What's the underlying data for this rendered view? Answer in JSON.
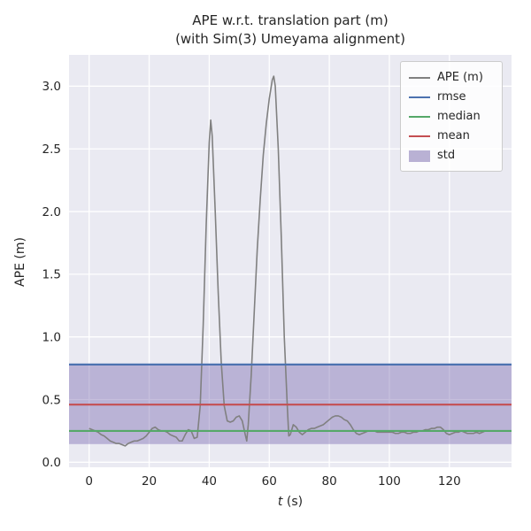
{
  "title": {
    "line1": "APE w.r.t. translation part (m)",
    "line2": "(with Sim(3) Umeyama alignment)"
  },
  "axes": {
    "ylabel": "APE (m)",
    "xlabel_var": "t",
    "xlabel_unit": " (s)"
  },
  "legend": {
    "items": [
      {
        "label": "APE (m)",
        "type": "line",
        "color": "#808080"
      },
      {
        "label": "rmse",
        "type": "line",
        "color": "#4C72B0"
      },
      {
        "label": "median",
        "type": "line",
        "color": "#55A868"
      },
      {
        "label": "mean",
        "type": "line",
        "color": "#C44E52"
      },
      {
        "label": "std",
        "type": "patch",
        "color": "rgba(129,114,179,0.55)"
      }
    ]
  },
  "chart_data": {
    "type": "line",
    "title": "APE w.r.t. translation part (m) (with Sim(3) Umeyama alignment)",
    "xlabel": "t (s)",
    "ylabel": "APE (m)",
    "xlim": [
      -6.7,
      140.7
    ],
    "ylim": [
      -0.04,
      3.25
    ],
    "xticks": [
      0,
      20,
      40,
      60,
      80,
      100,
      120
    ],
    "yticks": [
      0.0,
      0.5,
      1.0,
      1.5,
      2.0,
      2.5,
      3.0
    ],
    "grid": true,
    "legend_position": "upper right",
    "stats": {
      "rmse": 0.78,
      "mean": 0.46,
      "median": 0.25,
      "std": 0.315,
      "std_band": [
        0.145,
        0.775
      ]
    },
    "colors": {
      "plot_bg": "#EAEAF2",
      "grid": "#FFFFFF",
      "ape": "#808080",
      "rmse": "#4C72B0",
      "median": "#55A868",
      "mean": "#C44E52",
      "std_fill": "rgba(129,114,179,0.45)",
      "text": "#262626"
    },
    "series": [
      {
        "name": "APE (m)",
        "color": "#808080",
        "points": [
          [
            0,
            0.27
          ],
          [
            1,
            0.26
          ],
          [
            2,
            0.25
          ],
          [
            3,
            0.24
          ],
          [
            4,
            0.22
          ],
          [
            5,
            0.21
          ],
          [
            6,
            0.19
          ],
          [
            7,
            0.17
          ],
          [
            8,
            0.16
          ],
          [
            9,
            0.15
          ],
          [
            10,
            0.15
          ],
          [
            11,
            0.14
          ],
          [
            12,
            0.13
          ],
          [
            13,
            0.15
          ],
          [
            14,
            0.16
          ],
          [
            15,
            0.17
          ],
          [
            16,
            0.17
          ],
          [
            17,
            0.18
          ],
          [
            18,
            0.19
          ],
          [
            19,
            0.21
          ],
          [
            20,
            0.24
          ],
          [
            21,
            0.27
          ],
          [
            22,
            0.28
          ],
          [
            23,
            0.26
          ],
          [
            24,
            0.25
          ],
          [
            25,
            0.25
          ],
          [
            26,
            0.24
          ],
          [
            27,
            0.22
          ],
          [
            28,
            0.21
          ],
          [
            29,
            0.2
          ],
          [
            30,
            0.17
          ],
          [
            31,
            0.17
          ],
          [
            32,
            0.22
          ],
          [
            33,
            0.26
          ],
          [
            34,
            0.25
          ],
          [
            35,
            0.19
          ],
          [
            36,
            0.2
          ],
          [
            37,
            0.45
          ],
          [
            38,
            1.1
          ],
          [
            39,
            1.9
          ],
          [
            40,
            2.55
          ],
          [
            40.5,
            2.73
          ],
          [
            41,
            2.6
          ],
          [
            42,
            2.0
          ],
          [
            43,
            1.35
          ],
          [
            44,
            0.8
          ],
          [
            45,
            0.45
          ],
          [
            46,
            0.33
          ],
          [
            47,
            0.32
          ],
          [
            48,
            0.33
          ],
          [
            49,
            0.36
          ],
          [
            50,
            0.37
          ],
          [
            51,
            0.33
          ],
          [
            52,
            0.22
          ],
          [
            52.5,
            0.17
          ],
          [
            53,
            0.3
          ],
          [
            54,
            0.7
          ],
          [
            55,
            1.2
          ],
          [
            56,
            1.7
          ],
          [
            57,
            2.1
          ],
          [
            58,
            2.45
          ],
          [
            59,
            2.7
          ],
          [
            60,
            2.9
          ],
          [
            61,
            3.05
          ],
          [
            61.5,
            3.08
          ],
          [
            62,
            3.0
          ],
          [
            63,
            2.5
          ],
          [
            64,
            1.8
          ],
          [
            65,
            1.0
          ],
          [
            66,
            0.45
          ],
          [
            66.5,
            0.21
          ],
          [
            67,
            0.22
          ],
          [
            68,
            0.3
          ],
          [
            69,
            0.28
          ],
          [
            70,
            0.24
          ],
          [
            71,
            0.22
          ],
          [
            72,
            0.24
          ],
          [
            73,
            0.26
          ],
          [
            74,
            0.27
          ],
          [
            75,
            0.27
          ],
          [
            76,
            0.28
          ],
          [
            77,
            0.29
          ],
          [
            78,
            0.3
          ],
          [
            79,
            0.32
          ],
          [
            80,
            0.34
          ],
          [
            81,
            0.36
          ],
          [
            82,
            0.37
          ],
          [
            83,
            0.37
          ],
          [
            84,
            0.36
          ],
          [
            85,
            0.34
          ],
          [
            86,
            0.33
          ],
          [
            87,
            0.3
          ],
          [
            88,
            0.26
          ],
          [
            89,
            0.23
          ],
          [
            90,
            0.22
          ],
          [
            91,
            0.23
          ],
          [
            92,
            0.24
          ],
          [
            93,
            0.25
          ],
          [
            94,
            0.25
          ],
          [
            95,
            0.25
          ],
          [
            96,
            0.24
          ],
          [
            97,
            0.24
          ],
          [
            98,
            0.24
          ],
          [
            99,
            0.24
          ],
          [
            100,
            0.24
          ],
          [
            101,
            0.24
          ],
          [
            102,
            0.23
          ],
          [
            103,
            0.23
          ],
          [
            104,
            0.24
          ],
          [
            105,
            0.24
          ],
          [
            106,
            0.23
          ],
          [
            107,
            0.23
          ],
          [
            108,
            0.24
          ],
          [
            109,
            0.24
          ],
          [
            110,
            0.25
          ],
          [
            111,
            0.25
          ],
          [
            112,
            0.26
          ],
          [
            113,
            0.26
          ],
          [
            114,
            0.27
          ],
          [
            115,
            0.27
          ],
          [
            116,
            0.28
          ],
          [
            117,
            0.28
          ],
          [
            118,
            0.26
          ],
          [
            119,
            0.23
          ],
          [
            120,
            0.22
          ],
          [
            121,
            0.23
          ],
          [
            122,
            0.24
          ],
          [
            123,
            0.24
          ],
          [
            124,
            0.25
          ],
          [
            125,
            0.24
          ],
          [
            126,
            0.23
          ],
          [
            127,
            0.23
          ],
          [
            128,
            0.23
          ],
          [
            129,
            0.24
          ],
          [
            130,
            0.23
          ],
          [
            131,
            0.24
          ],
          [
            132,
            0.25
          ],
          [
            133,
            0.25
          ],
          [
            134,
            0.25
          ]
        ]
      }
    ]
  }
}
